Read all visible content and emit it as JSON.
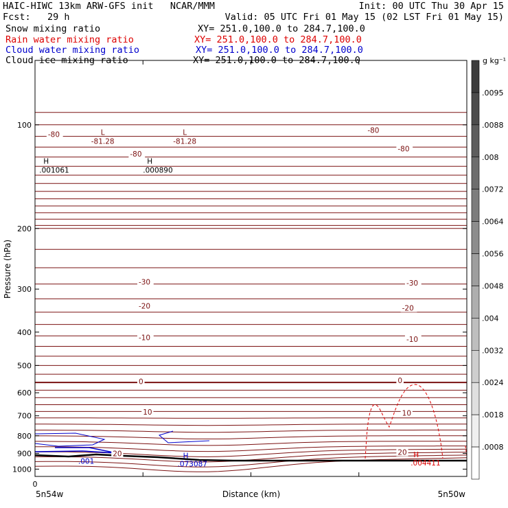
{
  "header": {
    "line1_left": "HAIC-HIWC 13km ARW-GFS init   NCAR/MMM",
    "line1_right": "Init: 00 UTC Thu 30 Apr 15",
    "line2_left": "Fcst:   29 h",
    "line2_right": "Valid: 05 UTC Fri 01 May 15 (02 LST Fri 01 May 15)",
    "fields": [
      {
        "name": "Snow mixing ratio",
        "xy": "XY= 251.0,100.0 to 284.7,100.0",
        "color": "#000000"
      },
      {
        "name": "Rain water mixing ratio",
        "xy": "XY= 251.0,100.0 to 284.7,100.0",
        "color": "#dd0000"
      },
      {
        "name": "Cloud water mixing ratio",
        "xy": "XY= 251.0,100.0 to 284.7,100.0",
        "color": "#0000cc"
      },
      {
        "name": "Cloud ice mixing ratio",
        "xy": "XY= 251.0,100.0 to 284.7,100.0",
        "color": "#000000"
      }
    ]
  },
  "chart_data": {
    "type": "line",
    "title": "",
    "xlabel": "Distance (km)",
    "ylabel": "Pressure (hPa)",
    "y_scale": "log",
    "ylim": [
      1050,
      65
    ],
    "xlim": [
      0,
      100
    ],
    "x_tick_labels": [
      {
        "x": 0,
        "label": "0"
      }
    ],
    "x_minor_ticks": [
      0,
      25,
      50,
      75,
      100
    ],
    "x_end_labels": {
      "left": "5n54w",
      "right": "5n50w"
    },
    "y_ticks": [
      100,
      200,
      300,
      400,
      500,
      600,
      700,
      800,
      900,
      1000
    ],
    "temperature_contours": {
      "color": "#7a1010",
      "labels": [
        {
          "text": "-80",
          "x": 3,
          "p": 108
        },
        {
          "text": "-80",
          "x": 22,
          "p": 123
        },
        {
          "text": "-80",
          "x": 77,
          "p": 105
        },
        {
          "text": "-80",
          "x": 84,
          "p": 119
        },
        {
          "text": "-30",
          "x": 24,
          "p": 290
        },
        {
          "text": "-30",
          "x": 86,
          "p": 292
        },
        {
          "text": "-20",
          "x": 24,
          "p": 340
        },
        {
          "text": "-20",
          "x": 85,
          "p": 345
        },
        {
          "text": "-10",
          "x": 24,
          "p": 420
        },
        {
          "text": "-10",
          "x": 86,
          "p": 425
        },
        {
          "text": "0",
          "x": 24,
          "p": 564
        },
        {
          "text": "0",
          "x": 84,
          "p": 560
        },
        {
          "text": "10",
          "x": 25,
          "p": 692
        },
        {
          "text": "10",
          "x": 85,
          "p": 696
        },
        {
          "text": "20",
          "x": 18,
          "p": 912
        },
        {
          "text": "20",
          "x": 84,
          "p": 904
        }
      ],
      "extrema": [
        {
          "kind": "L",
          "value": "-81.28",
          "x": 13,
          "p": 108
        },
        {
          "kind": "L",
          "value": "-81.28",
          "x": 32,
          "p": 108
        },
        {
          "kind": "H",
          "value": ".001061",
          "x": 1,
          "p": 131
        },
        {
          "kind": "H",
          "value": ".000890",
          "x": 25,
          "p": 131
        }
      ]
    },
    "cloud_water": {
      "color": "#0000cc",
      "labels": [
        {
          "text": ".001",
          "x": 10,
          "p": 956
        },
        {
          "kind": "H",
          "text": ".073087",
          "x": 33,
          "p": 956
        }
      ]
    },
    "rain_water": {
      "color": "#dd0000",
      "labels": [
        {
          "kind": "H",
          "text": ".004411",
          "x": 87,
          "p": 966
        }
      ]
    },
    "colorbar": {
      "unit": "g kg⁻¹",
      "labels": [
        ".0095",
        ".0088",
        ".008",
        ".0072",
        ".0064",
        ".0056",
        ".0048",
        ".004",
        ".0032",
        ".0024",
        ".0018",
        ".0008"
      ]
    }
  }
}
